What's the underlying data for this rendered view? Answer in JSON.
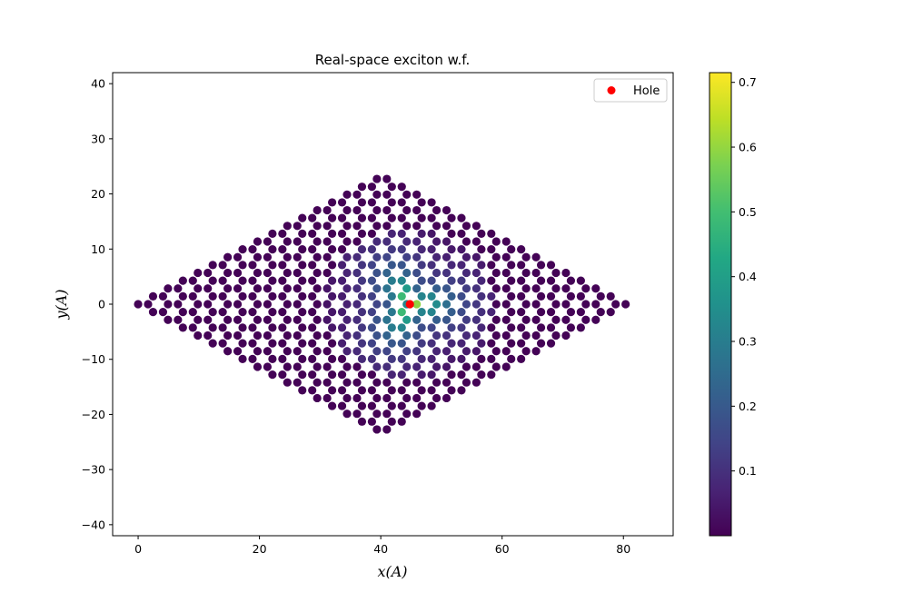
{
  "chart_data": {
    "type": "scatter",
    "title": "Real-space exciton w.f.",
    "xlabel": "x(A)",
    "ylabel": "y(A)",
    "xlim": [
      -4.2,
      88.2
    ],
    "ylim": [
      -42,
      42
    ],
    "xticks": [
      0,
      20,
      40,
      60,
      80
    ],
    "yticks": [
      -40,
      -30,
      -20,
      -10,
      0,
      10,
      20,
      30,
      40
    ],
    "lattice": {
      "description_type": "honeycomb rhombus",
      "n_cells_per_side": 17,
      "a1": [
        2.46,
        1.42
      ],
      "a2": [
        2.46,
        -1.42
      ],
      "sublattice_offset": [
        1.64,
        0.0
      ],
      "x_range": [
        0,
        83.7
      ],
      "y_range": [
        -23.6,
        23.6
      ]
    },
    "hole": {
      "x": 44.8,
      "y": 0.0,
      "label": "Hole",
      "color": "#ff0000"
    },
    "wavefunction_peak": 0.715,
    "wavefunction_decay_length": 6.0,
    "legend": {
      "position": "upper right",
      "entries": [
        "Hole"
      ]
    },
    "colorbar": {
      "colormap": "viridis",
      "min": 0.0,
      "max": 0.715,
      "ticks": [
        "0.1",
        "0.2",
        "0.3",
        "0.4",
        "0.5",
        "0.6",
        "0.7"
      ],
      "tick_values": [
        0.1,
        0.2,
        0.3,
        0.4,
        0.5,
        0.6,
        0.7
      ]
    },
    "grid": false
  }
}
